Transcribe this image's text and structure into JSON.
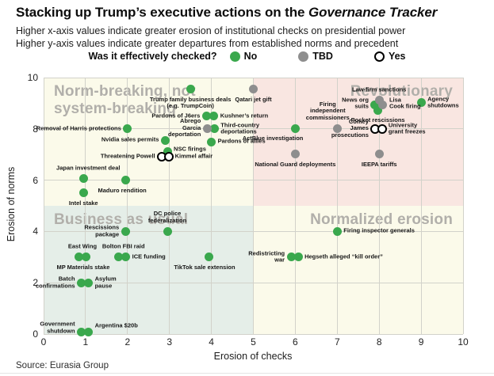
{
  "header": {
    "title_main": "Stacking up Trump’s executive actions on the ",
    "title_italic": "Governance Tracker",
    "subtitle_line1": "Higher x-axis values indicate greater erosion of institutional checks on presidential power",
    "subtitle_line2": "Higher y-axis values indicate greater departures from established norms and precedent"
  },
  "legend": {
    "question": "Was it effectively checked?",
    "items": [
      {
        "label": "No",
        "status": "no",
        "color": "#3aa84d"
      },
      {
        "label": "TBD",
        "status": "tbd",
        "color": "#8e8e8e"
      },
      {
        "label": "Yes",
        "status": "yes",
        "color": "#ffffff",
        "border": "#000000"
      }
    ]
  },
  "source": "Source: Eurasia Group",
  "chart_data": {
    "type": "scatter",
    "xlabel": "Erosion of checks",
    "ylabel": "Erosion of norms",
    "xlim": [
      0,
      10
    ],
    "ylim": [
      0,
      10
    ],
    "x_ticks": [
      0,
      1,
      2,
      3,
      4,
      5,
      6,
      7,
      8,
      9,
      10
    ],
    "y_ticks": [
      0,
      2,
      4,
      6,
      8,
      10
    ],
    "grid": true,
    "grid_color": "#d2d2ca",
    "quadrant_label_color": "#b1afaa",
    "quadrants": [
      {
        "id": "norm-breaking",
        "label": "Norm-breaking, not\nsystem-breaking",
        "x": [
          0,
          5
        ],
        "y": [
          5,
          10
        ],
        "bg": "#fbfaea",
        "anchor": "tl"
      },
      {
        "id": "revolutionary",
        "label": "Revolutionary",
        "x": [
          5,
          10
        ],
        "y": [
          5,
          10
        ],
        "bg": "#f9e6e1",
        "anchor": "tr"
      },
      {
        "id": "business-as-usual",
        "label": "Business as usual",
        "x": [
          0,
          5
        ],
        "y": [
          0,
          5
        ],
        "bg": "#e5eee8",
        "anchor": "tl"
      },
      {
        "id": "normalized-erosion",
        "label": "Normalized erosion",
        "x": [
          5,
          10
        ],
        "y": [
          0,
          5
        ],
        "bg": "#fbfaea",
        "anchor": "tr"
      }
    ],
    "series": [
      {
        "name": "No",
        "status": "no",
        "color": "#3aa84d",
        "points": [
          {
            "label": "Trump family business deals\n(e.g. TrumpCoin)",
            "x": 3.5,
            "y": 9.55,
            "pos": "below"
          },
          {
            "label": "Pardons of J6ers",
            "x": 3.88,
            "y": 8.5,
            "pos": "left"
          },
          {
            "label": "Kushner’s return",
            "x": 4.06,
            "y": 8.5,
            "pos": "right"
          },
          {
            "label": "Removal of Harris protections",
            "x": 2.0,
            "y": 8.0,
            "pos": "left"
          },
          {
            "label": "Third-country\ndeportations",
            "x": 4.07,
            "y": 8.0,
            "pos": "right"
          },
          {
            "label": "Nvidia sales permits",
            "x": 2.9,
            "y": 7.55,
            "pos": "left"
          },
          {
            "label": "Pardons of allies",
            "x": 4.0,
            "y": 7.5,
            "pos": "right"
          },
          {
            "label": "NSC firings",
            "x": 2.95,
            "y": 7.12,
            "pos": "right",
            "dy": -2
          },
          {
            "label": "Japan investment deal",
            "x": 0.95,
            "y": 6.05,
            "pos": "above",
            "dx": 6
          },
          {
            "label": "Maduro rendition",
            "x": 1.95,
            "y": 6.0,
            "pos": "below",
            "dx": -4
          },
          {
            "label": "Intel stake",
            "x": 0.95,
            "y": 5.5,
            "pos": "below"
          },
          {
            "label": "Rescissions\npackage",
            "x": 1.95,
            "y": 4.0,
            "pos": "left"
          },
          {
            "label": "DC police\nfederalization",
            "x": 2.95,
            "y": 4.0,
            "pos": "above"
          },
          {
            "label": "East Wing",
            "x": 0.85,
            "y": 3.0,
            "pos": "above",
            "dx": 4
          },
          {
            "label": "MP Materials stake",
            "x": 1.02,
            "y": 3.0,
            "pos": "below",
            "dx": -4
          },
          {
            "label": "Bolton FBI raid",
            "x": 1.79,
            "y": 3.0,
            "pos": "above",
            "dx": 6
          },
          {
            "label": "ICE funding",
            "x": 1.96,
            "y": 3.0,
            "pos": "right"
          },
          {
            "label": "TikTok sale extension",
            "x": 3.95,
            "y": 3.0,
            "pos": "below",
            "dx": -6
          },
          {
            "label": "Batch\nconfirmations",
            "x": 0.9,
            "y": 2.0,
            "pos": "left"
          },
          {
            "label": "Asylum\npause",
            "x": 1.07,
            "y": 2.0,
            "pos": "right"
          },
          {
            "label": "Government\nshutdown",
            "x": 0.9,
            "y": 0.08,
            "pos": "left",
            "dy": -5
          },
          {
            "label": "Argentina $20b",
            "x": 1.07,
            "y": 0.08,
            "pos": "right",
            "dy": -7
          },
          {
            "label": "ActBlue investigation",
            "x": 6.0,
            "y": 8.0,
            "pos": "below-left"
          },
          {
            "label": "Firing inspector generals",
            "x": 7.0,
            "y": 4.0,
            "pos": "right"
          },
          {
            "label": "Redistricting\nwar",
            "x": 5.9,
            "y": 3.0,
            "pos": "left"
          },
          {
            "label": "Hegseth alleged “kill order”",
            "x": 6.07,
            "y": 3.0,
            "pos": "right"
          },
          {
            "label": "News org\nsuits",
            "x": 7.9,
            "y": 8.93,
            "pos": "left",
            "dy": -2
          },
          {
            "label": "Pocket rescissions",
            "x": 7.97,
            "y": 8.72,
            "pos": "below"
          },
          {
            "label": "Agency\nshutdowns",
            "x": 9.0,
            "y": 9.02,
            "pos": "right"
          }
        ]
      },
      {
        "name": "TBD",
        "status": "tbd",
        "color": "#8e8e8e",
        "points": [
          {
            "label": "Qatari jet gift",
            "x": 5.0,
            "y": 9.55,
            "pos": "below"
          },
          {
            "label": "Abrego\nGarcia\ndeportation",
            "x": 3.9,
            "y": 8.02,
            "pos": "left"
          },
          {
            "label": "Law-firm sanctions",
            "x": 8.0,
            "y": 9.12,
            "pos": "above"
          },
          {
            "label": "Lisa\nCook firing",
            "x": 8.09,
            "y": 8.93,
            "pos": "right",
            "dy": -2
          },
          {
            "label": "Firing\nindependent\ncommissioners",
            "x": 7.0,
            "y": 8.0,
            "pos": "above",
            "dx": -12
          },
          {
            "label": "National Guard deployments",
            "x": 6.0,
            "y": 7.02,
            "pos": "below"
          },
          {
            "label": "IEEPA tariffs",
            "x": 8.0,
            "y": 7.02,
            "pos": "below"
          }
        ]
      },
      {
        "name": "Yes",
        "status": "yes",
        "color": "#ffffff",
        "border": "#000000",
        "points": [
          {
            "label": "Threatening Powell",
            "x": 2.81,
            "y": 6.9,
            "pos": "left"
          },
          {
            "label": "Kimmel affair",
            "x": 2.98,
            "y": 6.9,
            "pos": "right"
          },
          {
            "label": "Comey\nJames\nprosecutions",
            "x": 7.9,
            "y": 8.0,
            "pos": "left"
          },
          {
            "label": "University\ngrant freezes",
            "x": 8.07,
            "y": 8.0,
            "pos": "right"
          }
        ]
      }
    ]
  }
}
